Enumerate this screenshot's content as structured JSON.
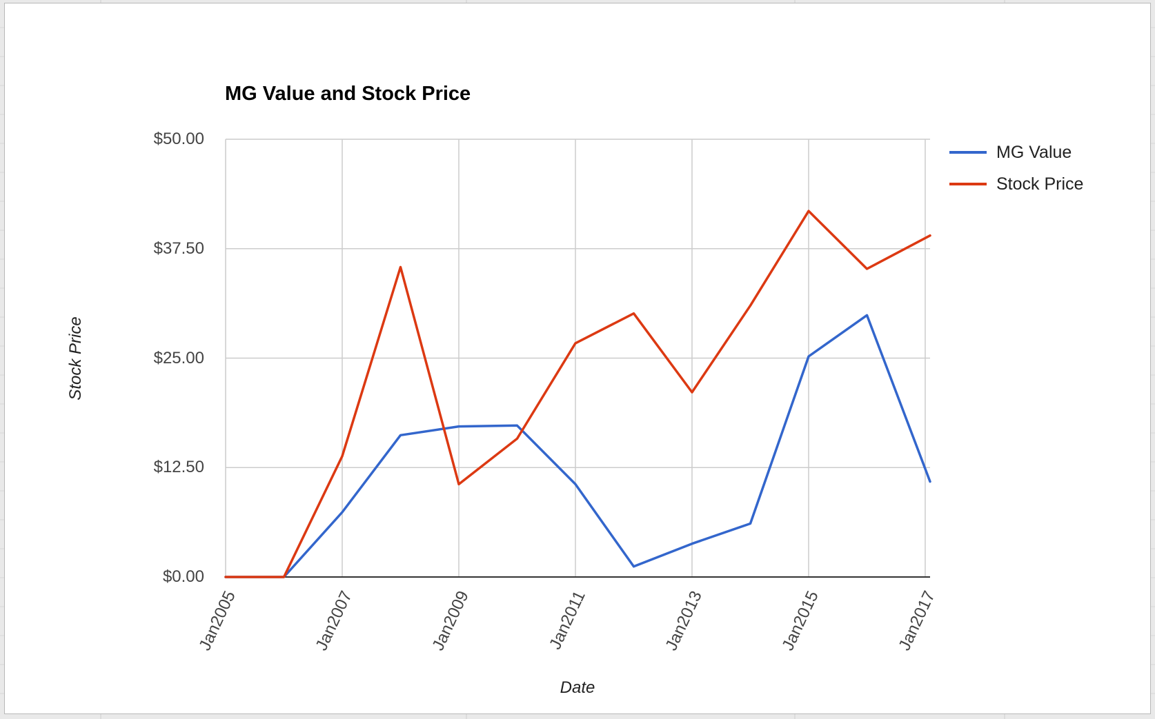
{
  "chart_data": {
    "type": "line",
    "title": "MG Value and Stock Price",
    "xlabel": "Date",
    "ylabel": "Stock Price",
    "x_ticks": [
      "Jan2005",
      "Jan2007",
      "Jan2009",
      "Jan2011",
      "Jan2013",
      "Jan2015",
      "Jan2017"
    ],
    "y_ticks": [
      "$0.00",
      "$12.50",
      "$25.00",
      "$37.50",
      "$50.00"
    ],
    "y_tick_values": [
      0,
      12.5,
      25,
      37.5,
      50
    ],
    "xlim": [
      "2005-01",
      "2017-02"
    ],
    "ylim": [
      0,
      50
    ],
    "grid": true,
    "legend": "right",
    "x": [
      "2005-01",
      "2006-01",
      "2007-01",
      "2008-01",
      "2009-01",
      "2010-01",
      "2011-01",
      "2012-01",
      "2013-01",
      "2014-01",
      "2015-01",
      "2016-01",
      "2017-02"
    ],
    "series": [
      {
        "name": "MG Value",
        "color": "#3366cc",
        "points": [
          [
            "2005-01",
            0
          ],
          [
            "2006-01",
            0
          ],
          [
            "2007-01",
            7.4
          ],
          [
            "2008-01",
            16.2
          ],
          [
            "2009-01",
            17.2
          ],
          [
            "2010-01",
            17.3
          ],
          [
            "2011-01",
            10.6
          ],
          [
            "2012-01",
            1.2
          ],
          [
            "2013-01",
            3.8
          ],
          [
            "2014-01",
            6.1
          ],
          [
            "2015-01",
            25.2
          ],
          [
            "2016-01",
            29.9
          ],
          [
            "2017-02",
            10.9
          ]
        ]
      },
      {
        "name": "Stock Price",
        "color": "#dc3912",
        "points": [
          [
            "2005-01",
            0
          ],
          [
            "2006-01",
            0
          ],
          [
            "2007-01",
            13.8
          ],
          [
            "2008-01",
            35.4
          ],
          [
            "2009-01",
            10.6
          ],
          [
            "2010-01",
            15.8
          ],
          [
            "2011-01",
            26.7
          ],
          [
            "2012-01",
            30.1
          ],
          [
            "2013-01",
            21.1
          ],
          [
            "2014-01",
            31.0
          ],
          [
            "2015-01",
            41.8
          ],
          [
            "2016-01",
            35.2
          ],
          [
            "2017-02",
            39.0
          ]
        ]
      }
    ]
  }
}
